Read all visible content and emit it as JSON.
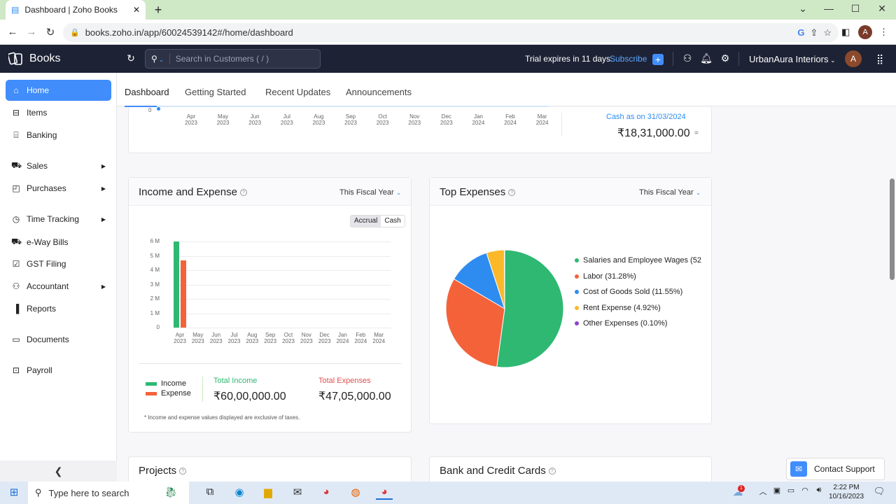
{
  "browser": {
    "tab_title": "Dashboard | Zoho Books",
    "url": "books.zoho.in/app/60024539142#/home/dashboard",
    "profile_initial": "A"
  },
  "header": {
    "app_name": "Books",
    "search_placeholder": "Search in Customers ( / )",
    "trial_text": "Trial expires in 11 days.",
    "subscribe": "Subscribe",
    "org_name": "UrbanAura Interiors",
    "user_initial": "A"
  },
  "sidebar": {
    "items": [
      {
        "label": "Home",
        "icon": "home-icon"
      },
      {
        "label": "Items",
        "icon": "basket-icon"
      },
      {
        "label": "Banking",
        "icon": "bank-icon"
      },
      {
        "label": "Sales",
        "icon": "cart-icon"
      },
      {
        "label": "Purchases",
        "icon": "bag-icon"
      },
      {
        "label": "Time Tracking",
        "icon": "clock-icon"
      },
      {
        "label": "e-Way Bills",
        "icon": "truck-icon"
      },
      {
        "label": "GST Filing",
        "icon": "gst-icon"
      },
      {
        "label": "Accountant",
        "icon": "person-icon"
      },
      {
        "label": "Reports",
        "icon": "chart-icon"
      },
      {
        "label": "Documents",
        "icon": "folder-icon"
      },
      {
        "label": "Payroll",
        "icon": "payroll-icon"
      }
    ]
  },
  "tabs": [
    "Dashboard",
    "Getting Started",
    "Recent Updates",
    "Announcements"
  ],
  "cashflow": {
    "zero_label": "0",
    "months": [
      [
        "Apr",
        "2023"
      ],
      [
        "May",
        "2023"
      ],
      [
        "Jun",
        "2023"
      ],
      [
        "Jul",
        "2023"
      ],
      [
        "Aug",
        "2023"
      ],
      [
        "Sep",
        "2023"
      ],
      [
        "Oct",
        "2023"
      ],
      [
        "Nov",
        "2023"
      ],
      [
        "Dec",
        "2023"
      ],
      [
        "Jan",
        "2024"
      ],
      [
        "Feb",
        "2024"
      ],
      [
        "Mar",
        "2024"
      ]
    ],
    "cash_as_on": "Cash as on 31/03/2024",
    "cash_value": "₹18,31,000.00",
    "cash_suffix": "="
  },
  "income_expense": {
    "title": "Income and Expense",
    "period": "This Fiscal Year",
    "toggle": [
      "Accrual",
      "Cash"
    ],
    "legend_income": "Income",
    "legend_expense": "Expense",
    "total_income_label": "Total Income",
    "total_income": "₹60,00,000.00",
    "total_expense_label": "Total Expenses",
    "total_expense": "₹47,05,000.00",
    "note": "* Income and expense values displayed are exclusive of taxes.",
    "colors": {
      "income": "#2eb872",
      "expense": "#f4623a"
    }
  },
  "top_expenses": {
    "title": "Top Expenses",
    "period": "This Fiscal Year"
  },
  "projects": {
    "title": "Projects"
  },
  "bank_cards": {
    "title": "Bank and Credit Cards"
  },
  "support": {
    "label": "Contact Support"
  },
  "taskbar": {
    "search_placeholder": "Type here to search",
    "time": "2:22 PM",
    "date": "10/16/2023",
    "notification_count": "1"
  },
  "chart_data": [
    {
      "type": "bar",
      "title": "Income and Expense",
      "categories": [
        "Apr 2023",
        "May 2023",
        "Jun 2023",
        "Jul 2023",
        "Aug 2023",
        "Sep 2023",
        "Oct 2023",
        "Nov 2023",
        "Dec 2023",
        "Jan 2024",
        "Feb 2024",
        "Mar 2024"
      ],
      "series": [
        {
          "name": "Income",
          "values": [
            6000000,
            0,
            0,
            0,
            0,
            0,
            0,
            0,
            0,
            0,
            0,
            0
          ],
          "color": "#2eb872"
        },
        {
          "name": "Expense",
          "values": [
            4705000,
            0,
            0,
            0,
            0,
            0,
            0,
            0,
            0,
            0,
            0,
            0
          ],
          "color": "#f4623a"
        }
      ],
      "yticks": [
        "0",
        "1 M",
        "2 M",
        "3 M",
        "4 M",
        "5 M",
        "6 M"
      ],
      "ylim": [
        0,
        6000000
      ],
      "grid": true
    },
    {
      "type": "pie",
      "title": "Top Expenses",
      "slices": [
        {
          "label": "Salaries and Employee Wages (52",
          "value": 52.15,
          "color": "#2eb872"
        },
        {
          "label": "Labor (31.28%)",
          "value": 31.28,
          "color": "#f4623a"
        },
        {
          "label": "Cost of Goods Sold (11.55%)",
          "value": 11.55,
          "color": "#2e8cf0"
        },
        {
          "label": "Rent Expense (4.92%)",
          "value": 4.92,
          "color": "#fbb829"
        },
        {
          "label": "Other Expenses (0.10%)",
          "value": 0.1,
          "color": "#8e44c4"
        }
      ],
      "legend": "right"
    }
  ]
}
